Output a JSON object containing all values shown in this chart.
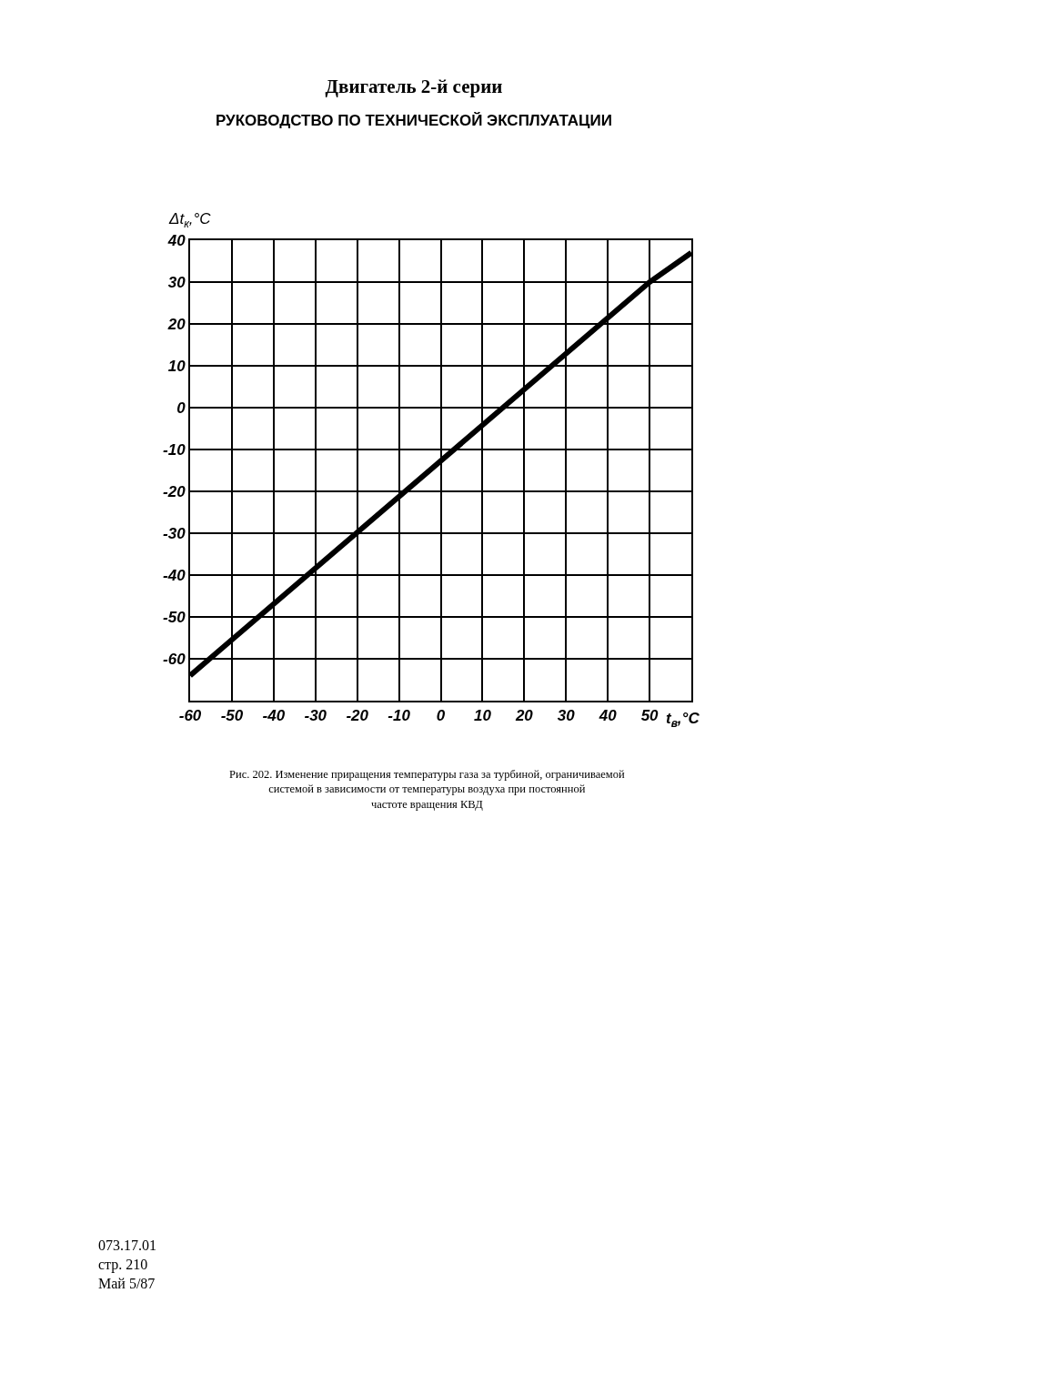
{
  "chart_data": {
    "type": "line",
    "title": "Двигатель 2-й серии",
    "subtitle": "РУКОВОДСТВО ПО ТЕХНИЧЕСКОЙ ЭКСПЛУАТАЦИИ",
    "xlabel": "t$_{в}$,°C",
    "ylabel": "Δt$_{к}$,°C",
    "annotations": [
      "Рис. 202. Изменение приращения температуры газа за турбиной, ограничиваемой\nсистемой в зависимости от температуры воздуха при постоянной\nчастоте вращения КВД",
      "073.17.01\nстр. 210\nМай 5/87"
    ],
    "x": [
      -60,
      50,
      60
    ],
    "series": [
      {
        "color": "#000000",
        "values": [
          -64,
          30,
          37
        ]
      }
    ],
    "xlim": [
      -60,
      60
    ],
    "ylim": [
      -70,
      40
    ],
    "xticks": [
      -60,
      -50,
      -40,
      -30,
      -20,
      -10,
      0,
      10,
      20,
      30,
      40,
      50,
      {
        "value": 60,
        "label": null
      }
    ],
    "yticks": [
      {
        "value": -70,
        "label": null
      },
      -60,
      -50,
      -40,
      -30,
      -20,
      -10,
      0,
      10,
      20,
      30,
      40
    ],
    "grid": true,
    "marker": "none",
    "line_style": "solid"
  }
}
